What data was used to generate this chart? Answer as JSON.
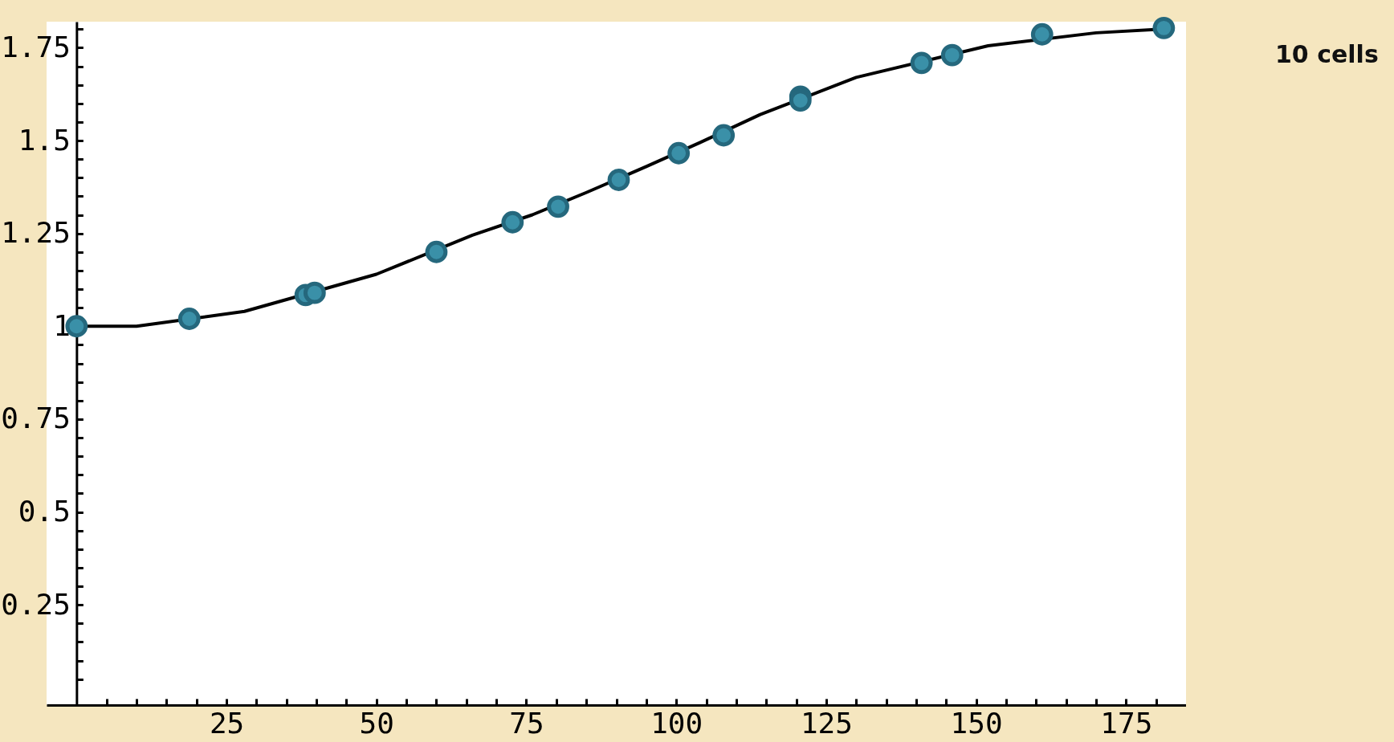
{
  "chart_data": {
    "type": "scatter",
    "annotations": [
      "10 cells"
    ],
    "xlim": [
      -5,
      185
    ],
    "ylim": [
      -0.02,
      1.82
    ],
    "xticks": [
      {
        "value": 5,
        "label": null
      },
      {
        "value": 10,
        "label": null
      },
      {
        "value": 15,
        "label": null
      },
      {
        "value": 20,
        "label": null
      },
      25,
      {
        "value": 30,
        "label": null
      },
      {
        "value": 35,
        "label": null
      },
      {
        "value": 40,
        "label": null
      },
      {
        "value": 45,
        "label": null
      },
      50,
      {
        "value": 55,
        "label": null
      },
      {
        "value": 60,
        "label": null
      },
      {
        "value": 65,
        "label": null
      },
      {
        "value": 70,
        "label": null
      },
      75,
      {
        "value": 80,
        "label": null
      },
      {
        "value": 85,
        "label": null
      },
      {
        "value": 90,
        "label": null
      },
      {
        "value": 95,
        "label": null
      },
      100,
      {
        "value": 105,
        "label": null
      },
      {
        "value": 110,
        "label": null
      },
      {
        "value": 115,
        "label": null
      },
      {
        "value": 120,
        "label": null
      },
      125,
      {
        "value": 130,
        "label": null
      },
      {
        "value": 135,
        "label": null
      },
      {
        "value": 140,
        "label": null
      },
      {
        "value": 145,
        "label": null
      },
      150,
      {
        "value": 155,
        "label": null
      },
      {
        "value": 160,
        "label": null
      },
      {
        "value": 165,
        "label": null
      },
      {
        "value": 170,
        "label": null
      },
      175,
      {
        "value": 180,
        "label": null
      }
    ],
    "yticks": [
      {
        "value": 0.05,
        "label": null
      },
      {
        "value": 0.1,
        "label": null
      },
      {
        "value": 0.15,
        "label": null
      },
      {
        "value": 0.2,
        "label": null
      },
      0.25,
      {
        "value": 0.3,
        "label": null
      },
      {
        "value": 0.35,
        "label": null
      },
      {
        "value": 0.4,
        "label": null
      },
      {
        "value": 0.45,
        "label": null
      },
      0.5,
      {
        "value": 0.55,
        "label": null
      },
      {
        "value": 0.6,
        "label": null
      },
      {
        "value": 0.65,
        "label": null
      },
      {
        "value": 0.7,
        "label": null
      },
      0.75,
      {
        "value": 0.8,
        "label": null
      },
      {
        "value": 0.85,
        "label": null
      },
      {
        "value": 0.9,
        "label": null
      },
      {
        "value": 0.95,
        "label": null
      },
      1,
      {
        "value": 1.05,
        "label": null
      },
      {
        "value": 1.1,
        "label": null
      },
      {
        "value": 1.15,
        "label": null
      },
      {
        "value": 1.2,
        "label": null
      },
      1.25,
      {
        "value": 1.3,
        "label": null
      },
      {
        "value": 1.35,
        "label": null
      },
      {
        "value": 1.4,
        "label": null
      },
      {
        "value": 1.45,
        "label": null
      },
      1.5,
      {
        "value": 1.55,
        "label": null
      },
      {
        "value": 1.6,
        "label": null
      },
      {
        "value": 1.65,
        "label": null
      },
      {
        "value": 1.7,
        "label": null
      },
      1.75,
      {
        "value": 1.8,
        "label": null
      }
    ],
    "grid": false,
    "marker": "circle",
    "series": [
      {
        "type": "line",
        "color": "#000000",
        "marker": "none",
        "line_style": "solid",
        "x": [
          0,
          10,
          28,
          50,
          66,
          76,
          85,
          95,
          104,
          114,
          130,
          152,
          170,
          181
        ],
        "values": [
          1.0,
          1.0,
          1.04,
          1.14,
          1.245,
          1.3,
          1.36,
          1.43,
          1.495,
          1.57,
          1.67,
          1.755,
          1.79,
          1.8
        ]
      },
      {
        "color": "#3a90a8",
        "x": [
          0,
          18.8,
          38.2,
          39.7,
          60,
          72.7,
          80.3,
          90.4,
          100.4,
          107.9,
          120.7,
          120.7,
          140.9,
          146,
          161,
          181.3
        ],
        "values": [
          1.0,
          1.02,
          1.084,
          1.09,
          1.2,
          1.28,
          1.322,
          1.394,
          1.466,
          1.514,
          1.618,
          1.608,
          1.709,
          1.73,
          1.786,
          1.803
        ]
      }
    ]
  }
}
